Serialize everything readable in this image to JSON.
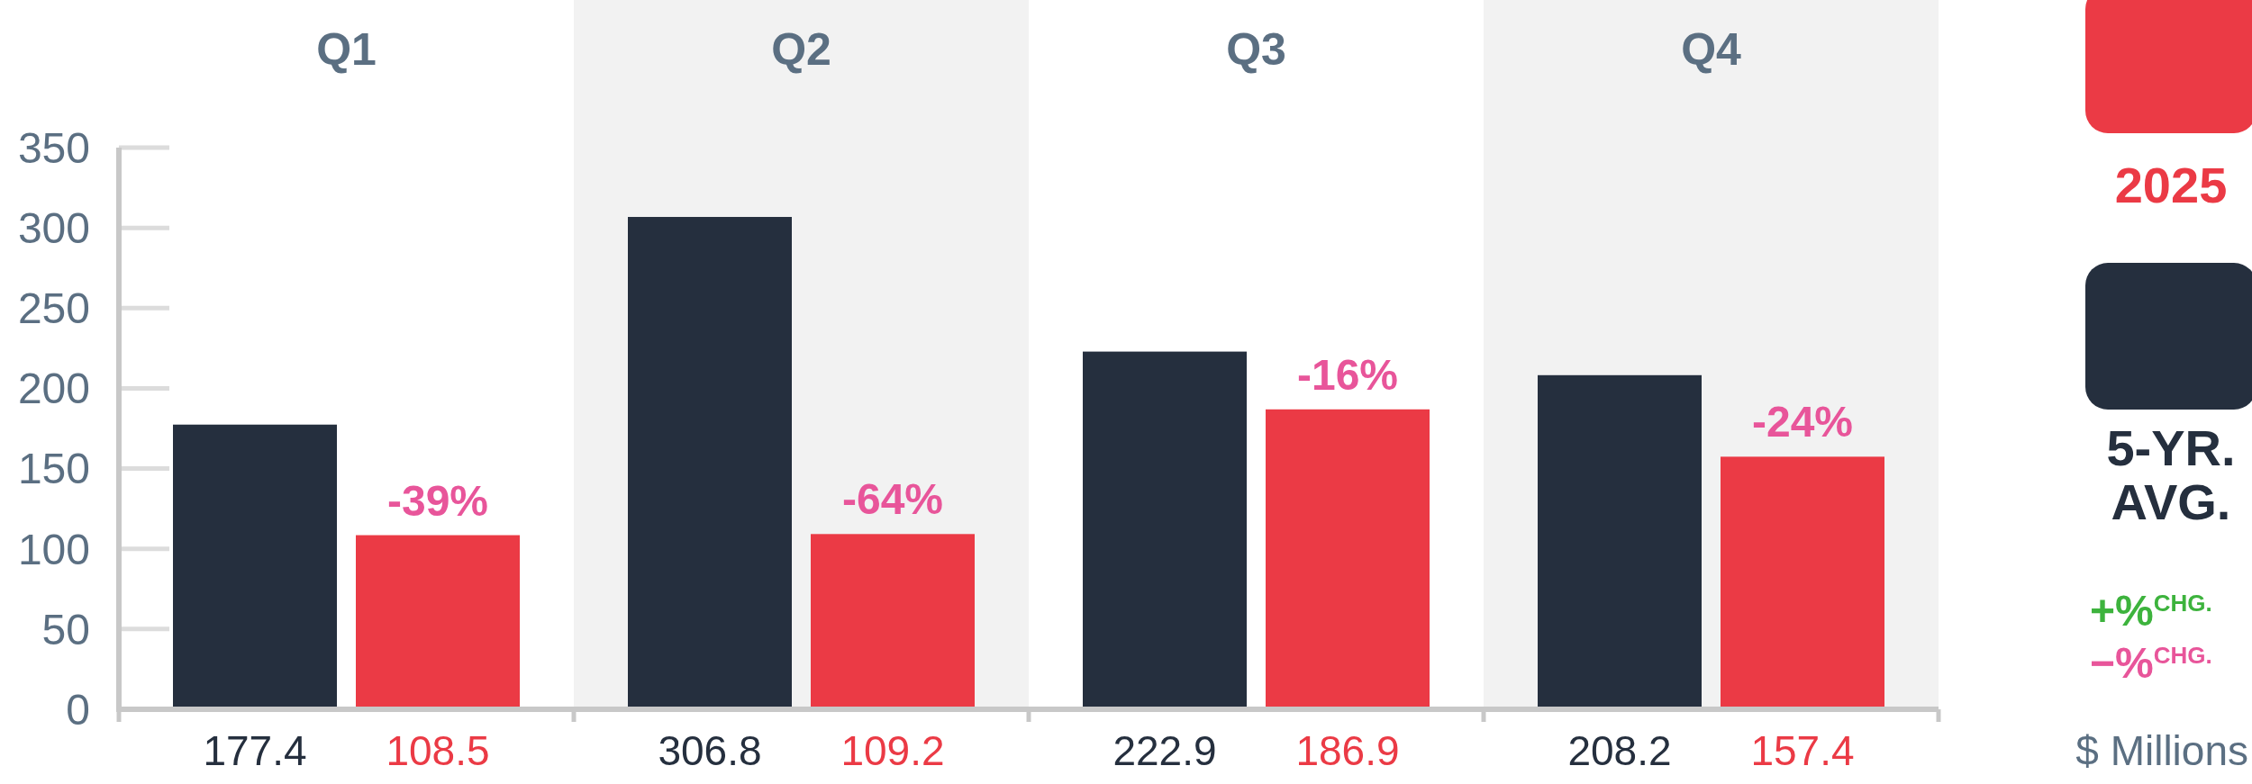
{
  "chart_data": {
    "type": "bar",
    "categories": [
      "Q1",
      "Q2",
      "Q3",
      "Q4"
    ],
    "series": [
      {
        "name": "5-YR. AVG.",
        "color": "#252f3e",
        "values": [
          177.4,
          306.8,
          222.9,
          208.2
        ]
      },
      {
        "name": "2025",
        "color": "#eb3a45",
        "values": [
          108.5,
          109.2,
          186.9,
          157.4
        ]
      }
    ],
    "ylim": [
      0,
      350
    ],
    "yticks": [
      0,
      50,
      100,
      150,
      200,
      250,
      300,
      350
    ],
    "grid": false,
    "legend": "right",
    "data_labels": true,
    "ylabel": "$ Millions",
    "annotations": [
      "-39%",
      "-64%",
      "-16%",
      "-24%",
      "+%$^{CHG.}$",
      "−%$^{CHG.}$"
    ]
  }
}
